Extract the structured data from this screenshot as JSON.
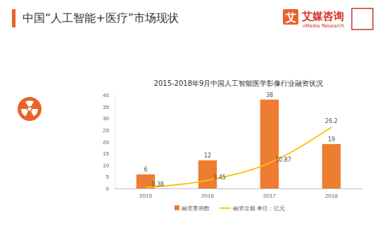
{
  "header": {
    "title": "中国“人工智能+医疗”市场现状",
    "brand_icon": "艾",
    "brand": "艾媒咨询",
    "brand_en": "iiMedia Research"
  },
  "chart_data": {
    "type": "bar",
    "title": "2015-2018年9月中国人工智能医学影像行业融资状况",
    "categories": [
      "2015",
      "2016",
      "2017",
      "2018"
    ],
    "series": [
      {
        "name": "融资案例数",
        "type": "bar",
        "color": "#ED7D31",
        "values": [
          6,
          12,
          38,
          19
        ]
      },
      {
        "name": "融资金额 单位：亿元",
        "type": "line",
        "color": "#FFC000",
        "values": [
          0.38,
          3.45,
          10.87,
          26.2
        ]
      }
    ],
    "ylim": [
      0,
      40
    ],
    "yticks": [
      0,
      5,
      10,
      15,
      20,
      25,
      30,
      35,
      40
    ],
    "grid": false,
    "legend": "bottom",
    "data_labels": true
  }
}
